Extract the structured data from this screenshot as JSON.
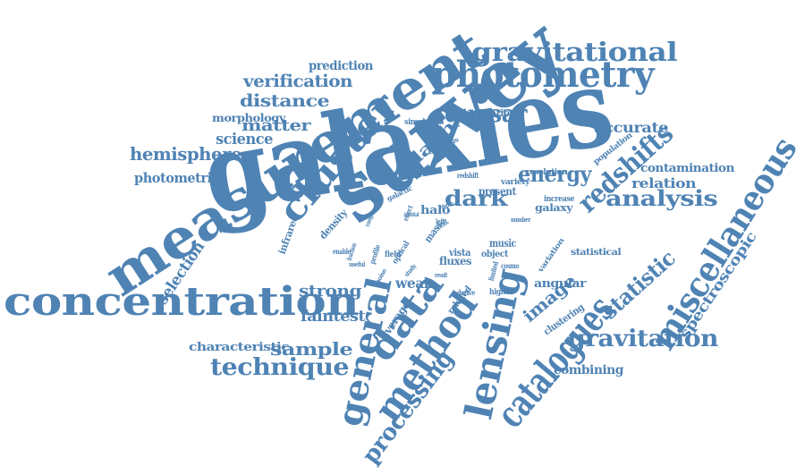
{
  "cloud": {
    "color": "#4f83b4",
    "words": [
      "galaxies",
      "survey",
      "measurement",
      "concentration",
      "photometry",
      "gravitational",
      "cluster",
      "general",
      "method",
      "lensing",
      "catalogues",
      "miscellaneous",
      "data",
      "redshifts",
      "technique",
      "analysis",
      "gravitation",
      "processing",
      "dark",
      "energy",
      "statistic",
      "quasar",
      "hemisphere",
      "sample",
      "verification",
      "distance",
      "matter",
      "selection",
      "strong",
      "image",
      "faintest",
      "spectroscopic",
      "accurate",
      "weak",
      "clash",
      "science",
      "photometric",
      "relation",
      "prediction",
      "contamination",
      "morphology",
      "angular",
      "combining",
      "characteristic",
      "observation",
      "simulation",
      "population",
      "luminous",
      "resolution",
      "halo",
      "present",
      "variety",
      "redshift",
      "galaxy",
      "increase",
      "music",
      "object",
      "fluxes",
      "vista",
      "cosmo",
      "statistical",
      "average",
      "relaxed",
      "clustering",
      "variation",
      "density",
      "infrared",
      "galactic",
      "enable",
      "useful",
      "fraction",
      "field",
      "optical",
      "profile",
      "mass",
      "limited",
      "higher",
      "derive",
      "number",
      "cent",
      "effect",
      "range",
      "depth",
      "noise",
      "study",
      "result",
      "orbital",
      "left"
    ]
  }
}
